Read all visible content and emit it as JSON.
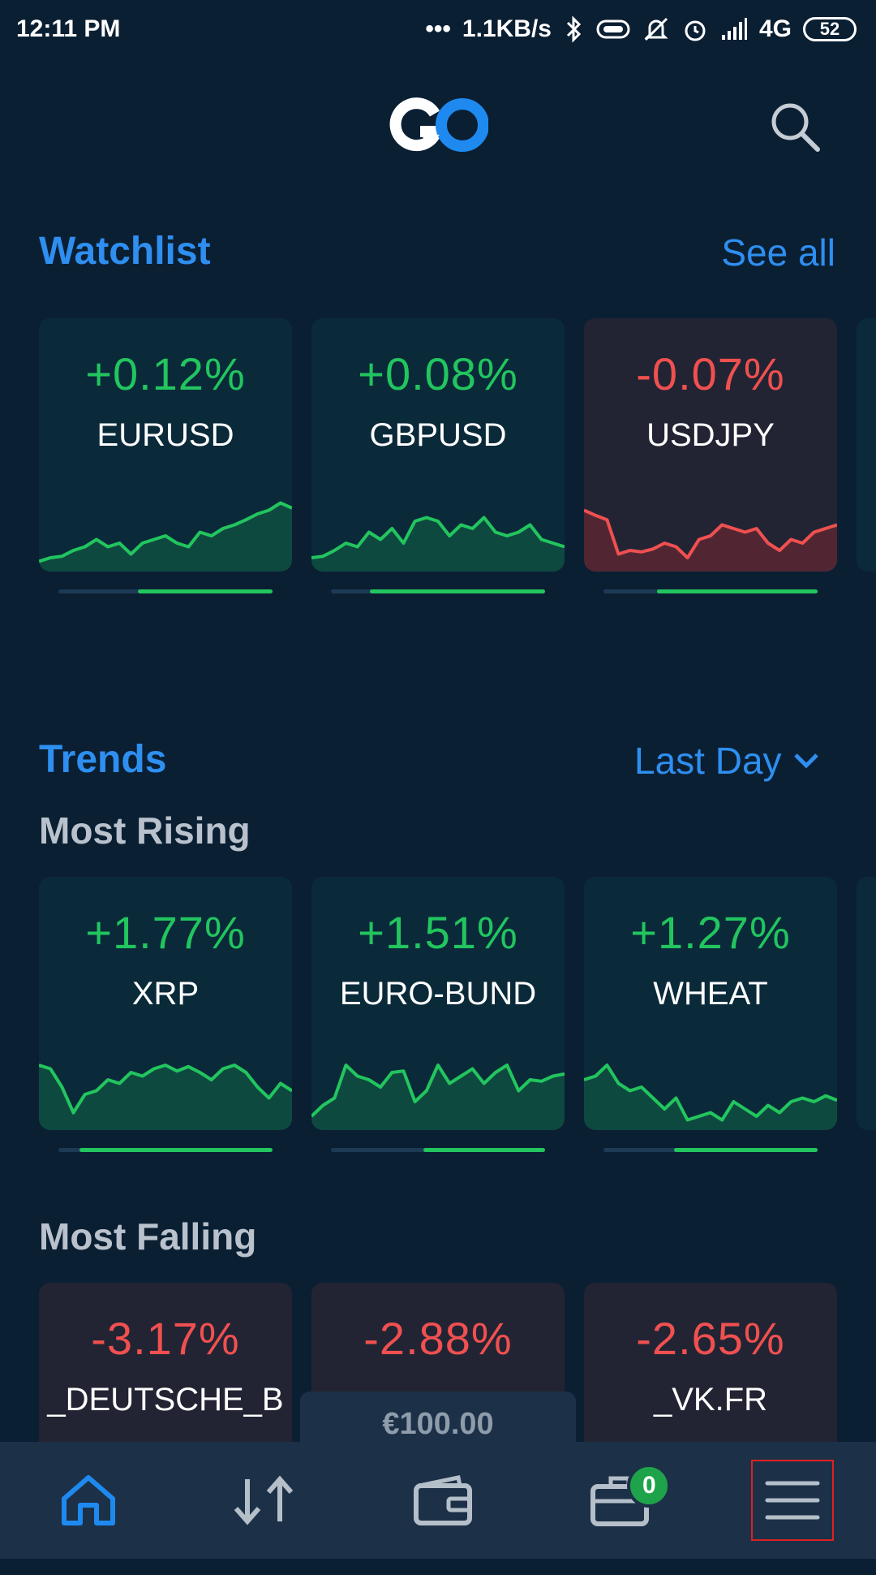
{
  "status_bar": {
    "time": "12:11 PM",
    "dots": "•••",
    "speed": "1.1KB/s",
    "network": "4G",
    "battery": "52",
    "icons": [
      "bluetooth-icon",
      "vibrate-icon",
      "mute-icon",
      "alarm-icon",
      "signal-icon"
    ]
  },
  "header": {
    "logo": "GO",
    "search_icon": "search-icon"
  },
  "watchlist": {
    "title": "Watchlist",
    "see_all": "See all",
    "cards": [
      {
        "pct": "+0.12%",
        "name": "EURUSD",
        "trend": "up",
        "range_fill": [
          0.37,
          1.0
        ],
        "spark": [
          0.05,
          0.1,
          0.12,
          0.2,
          0.25,
          0.35,
          0.25,
          0.3,
          0.15,
          0.3,
          0.35,
          0.4,
          0.3,
          0.25,
          0.45,
          0.4,
          0.5,
          0.55,
          0.62,
          0.7,
          0.75,
          0.85,
          0.78
        ]
      },
      {
        "pct": "+0.08%",
        "name": "GBPUSD",
        "trend": "up",
        "range_fill": [
          0.18,
          1.0
        ],
        "spark": [
          0.1,
          0.12,
          0.2,
          0.3,
          0.25,
          0.45,
          0.35,
          0.5,
          0.3,
          0.6,
          0.65,
          0.6,
          0.4,
          0.55,
          0.5,
          0.65,
          0.45,
          0.4,
          0.45,
          0.55,
          0.35,
          0.3,
          0.25
        ]
      },
      {
        "pct": "-0.07%",
        "name": "USDJPY",
        "trend": "down",
        "range_fill": [
          0.25,
          1.0
        ],
        "spark": [
          0.75,
          0.68,
          0.62,
          0.15,
          0.2,
          0.18,
          0.22,
          0.3,
          0.25,
          0.1,
          0.35,
          0.4,
          0.55,
          0.5,
          0.45,
          0.5,
          0.3,
          0.2,
          0.35,
          0.3,
          0.45,
          0.5,
          0.55
        ]
      }
    ]
  },
  "trends": {
    "title": "Trends",
    "period": "Last Day",
    "most_rising_label": "Most Rising",
    "rising": [
      {
        "pct": "+1.77%",
        "name": "XRP",
        "trend": "up",
        "range_fill": [
          0.1,
          1.0
        ],
        "spark": [
          0.8,
          0.75,
          0.5,
          0.15,
          0.4,
          0.45,
          0.6,
          0.55,
          0.7,
          0.65,
          0.75,
          0.8,
          0.72,
          0.78,
          0.7,
          0.6,
          0.75,
          0.8,
          0.7,
          0.5,
          0.35,
          0.55,
          0.45
        ]
      },
      {
        "pct": "+1.51%",
        "name": "EURO-BUND",
        "trend": "up",
        "range_fill": [
          0.43,
          1.0
        ],
        "spark": [
          0.1,
          0.25,
          0.35,
          0.8,
          0.65,
          0.6,
          0.5,
          0.7,
          0.72,
          0.3,
          0.45,
          0.8,
          0.55,
          0.65,
          0.75,
          0.55,
          0.7,
          0.8,
          0.45,
          0.6,
          0.58,
          0.65,
          0.68
        ]
      },
      {
        "pct": "+1.27%",
        "name": "WHEAT",
        "trend": "up",
        "range_fill": [
          0.33,
          1.0
        ],
        "spark": [
          0.6,
          0.65,
          0.8,
          0.55,
          0.45,
          0.5,
          0.35,
          0.2,
          0.35,
          0.05,
          0.1,
          0.15,
          0.05,
          0.3,
          0.2,
          0.1,
          0.25,
          0.15,
          0.3,
          0.35,
          0.3,
          0.38,
          0.32
        ]
      }
    ],
    "most_falling_label": "Most Falling",
    "falling": [
      {
        "pct": "-3.17%",
        "name": "_DEUTSCHE_B",
        "trend": "down"
      },
      {
        "pct": "-2.88%",
        "name": "",
        "trend": "down"
      },
      {
        "pct": "-2.65%",
        "name": "_VK.FR",
        "trend": "down"
      }
    ]
  },
  "balance": {
    "amount": "€100.00"
  },
  "bottom_nav": {
    "items": [
      "home-icon",
      "trade-icon",
      "wallet-icon",
      "portfolio-icon",
      "menu-icon"
    ],
    "portfolio_badge": "0"
  },
  "colors": {
    "up": "#22c55e",
    "down": "#f05050",
    "accent": "#2e8ff0",
    "bg": "#0b1f33"
  }
}
